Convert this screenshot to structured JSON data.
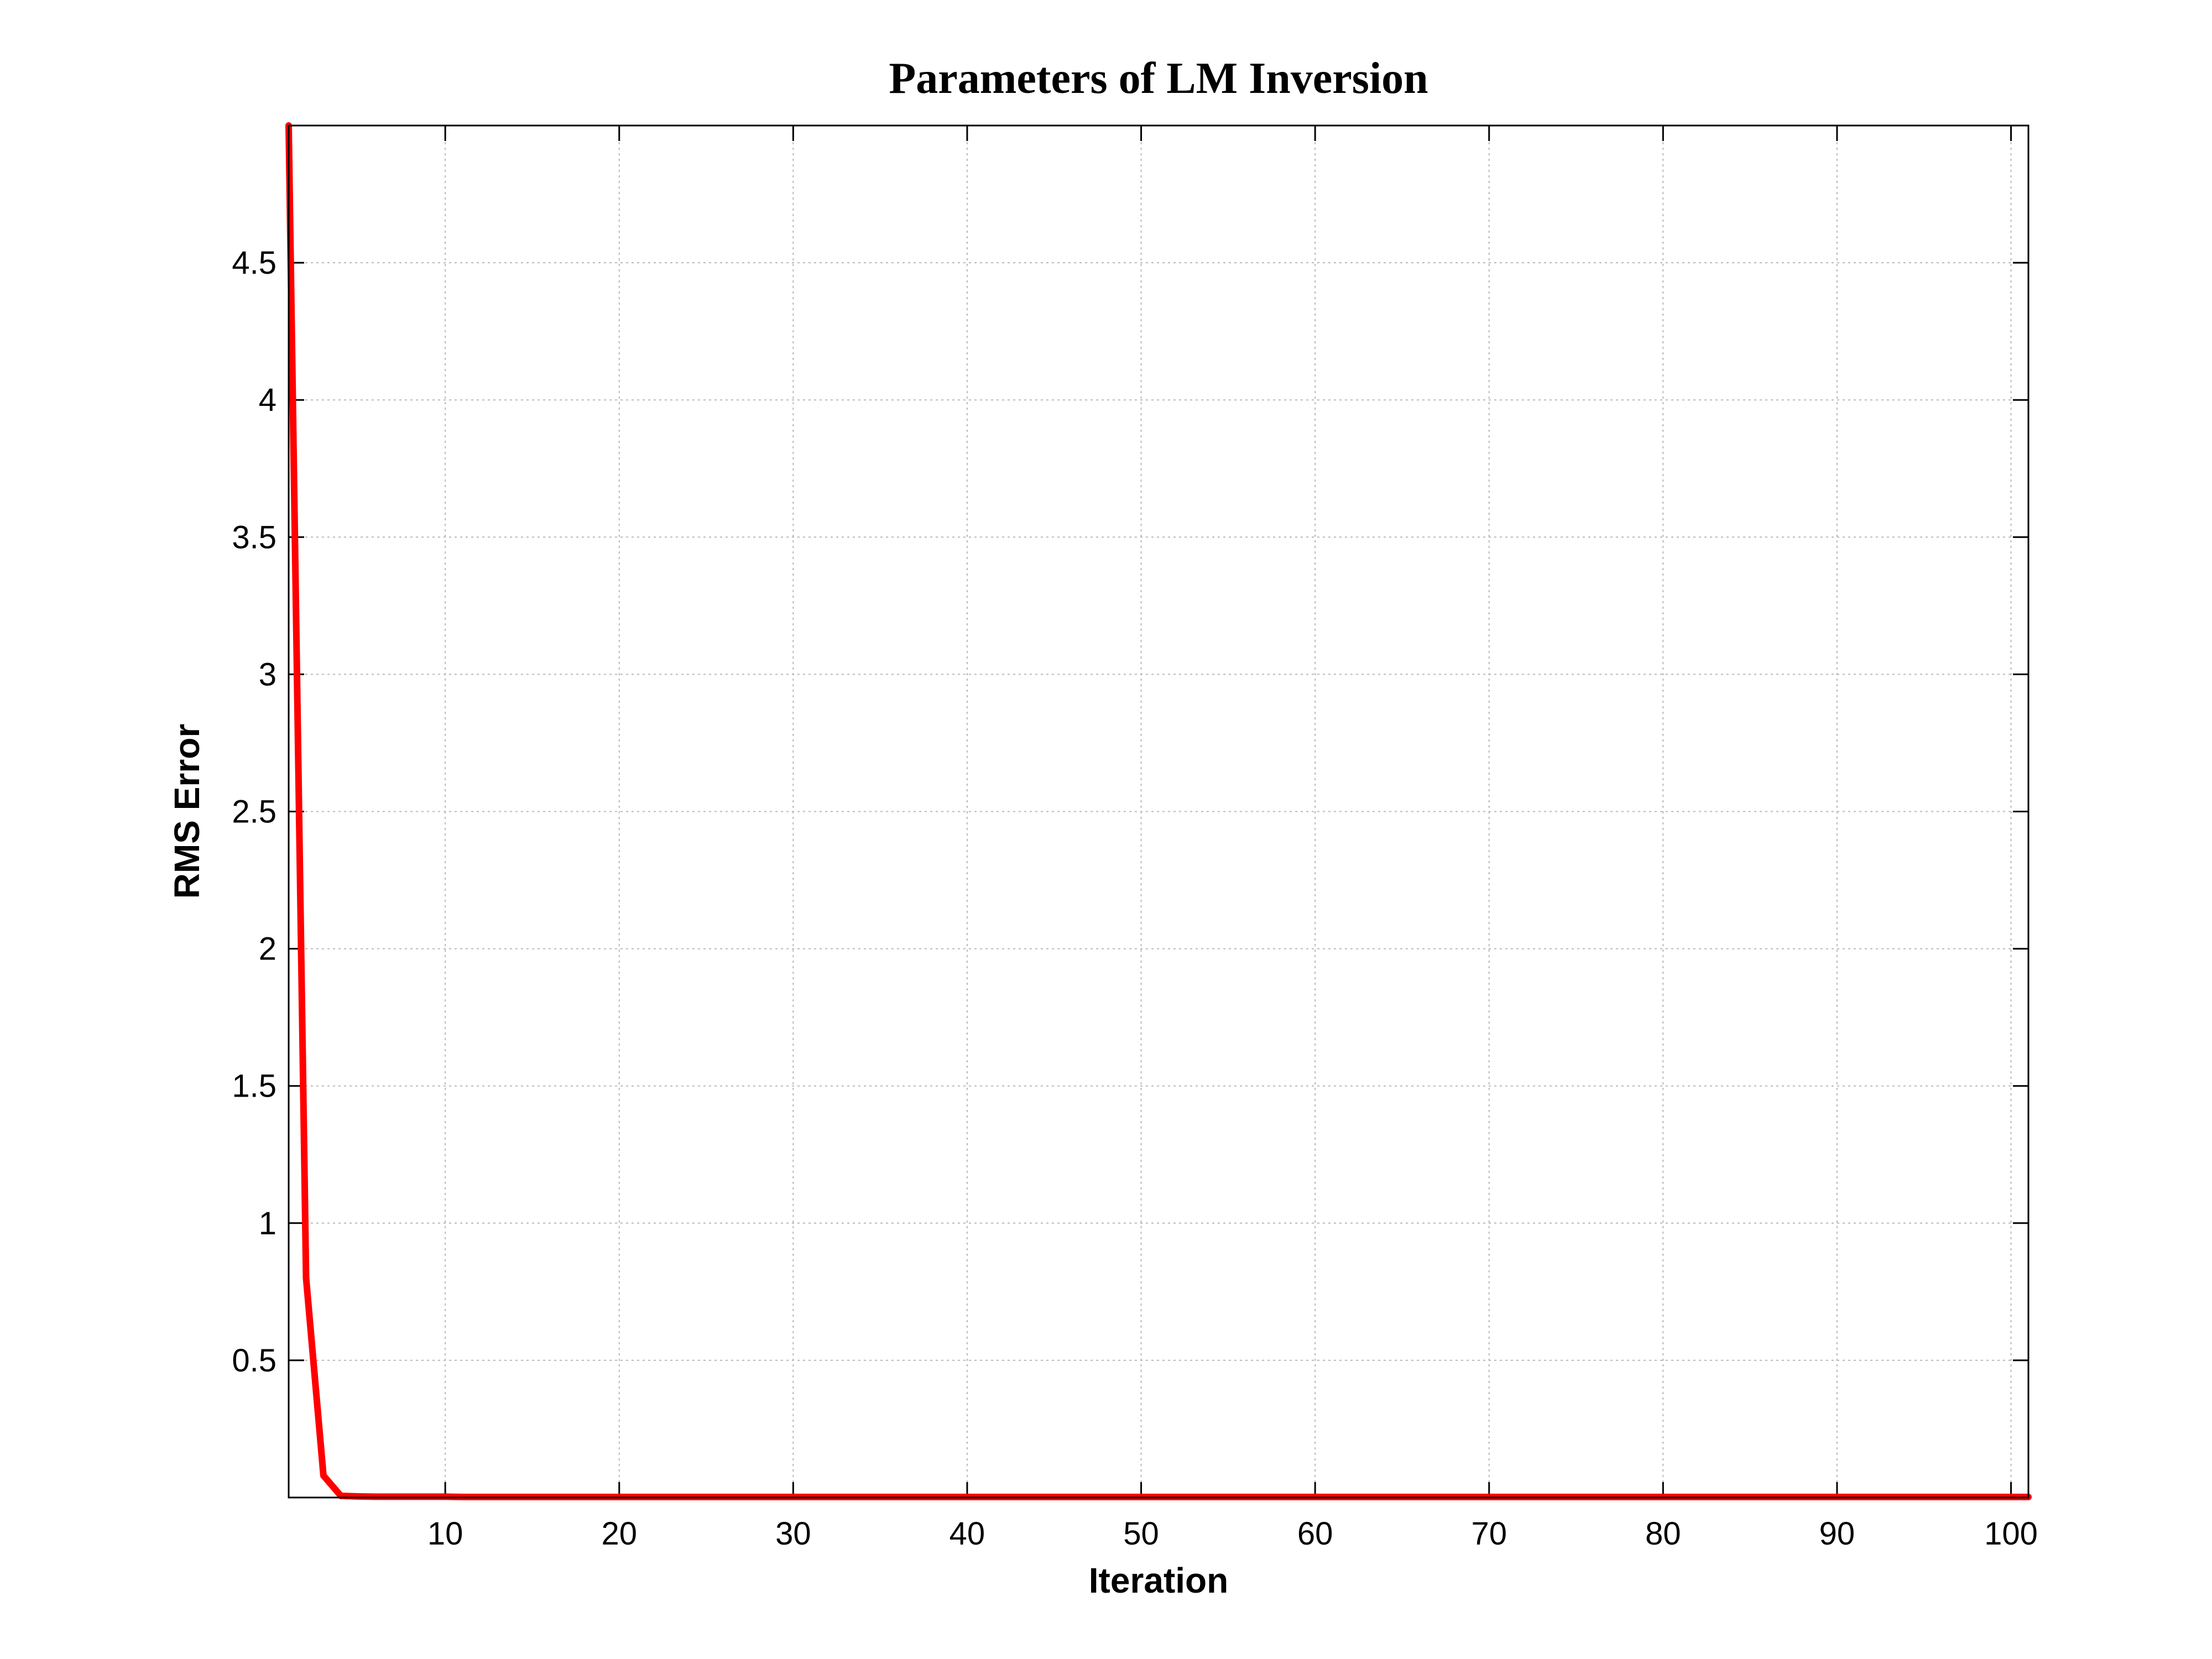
{
  "chart_data": {
    "type": "line",
    "title": "Parameters of LM Inversion",
    "xlabel": "Iteration",
    "ylabel": "RMS Error",
    "xlim": [
      1,
      101
    ],
    "ylim": [
      0,
      5
    ],
    "xticks": [
      10,
      20,
      30,
      40,
      50,
      60,
      70,
      80,
      90,
      100
    ],
    "yticks": [
      0.5,
      1,
      1.5,
      2,
      2.5,
      3,
      3.5,
      4,
      4.5
    ],
    "xtick_labels": [
      "10",
      "20",
      "30",
      "40",
      "50",
      "60",
      "70",
      "80",
      "90",
      "100"
    ],
    "ytick_labels": [
      "0.5",
      "1",
      "1.5",
      "2",
      "2.5",
      "3",
      "3.5",
      "4",
      "4.5"
    ],
    "grid": true,
    "series": [
      {
        "color": "#ff0000",
        "x": [
          1,
          2,
          3,
          4,
          5,
          6,
          7,
          8,
          9,
          10,
          11,
          12,
          13,
          14,
          15,
          20,
          30,
          40,
          50,
          60,
          70,
          80,
          90,
          100,
          101
        ],
        "y": [
          5.0,
          0.8,
          0.08,
          0.006,
          0.004,
          0.003,
          0.003,
          0.003,
          0.003,
          0.003,
          0.002,
          0.002,
          0.002,
          0.002,
          0.002,
          0.002,
          0.002,
          0.002,
          0.002,
          0.002,
          0.002,
          0.002,
          0.002,
          0.002,
          0.002
        ]
      }
    ]
  }
}
